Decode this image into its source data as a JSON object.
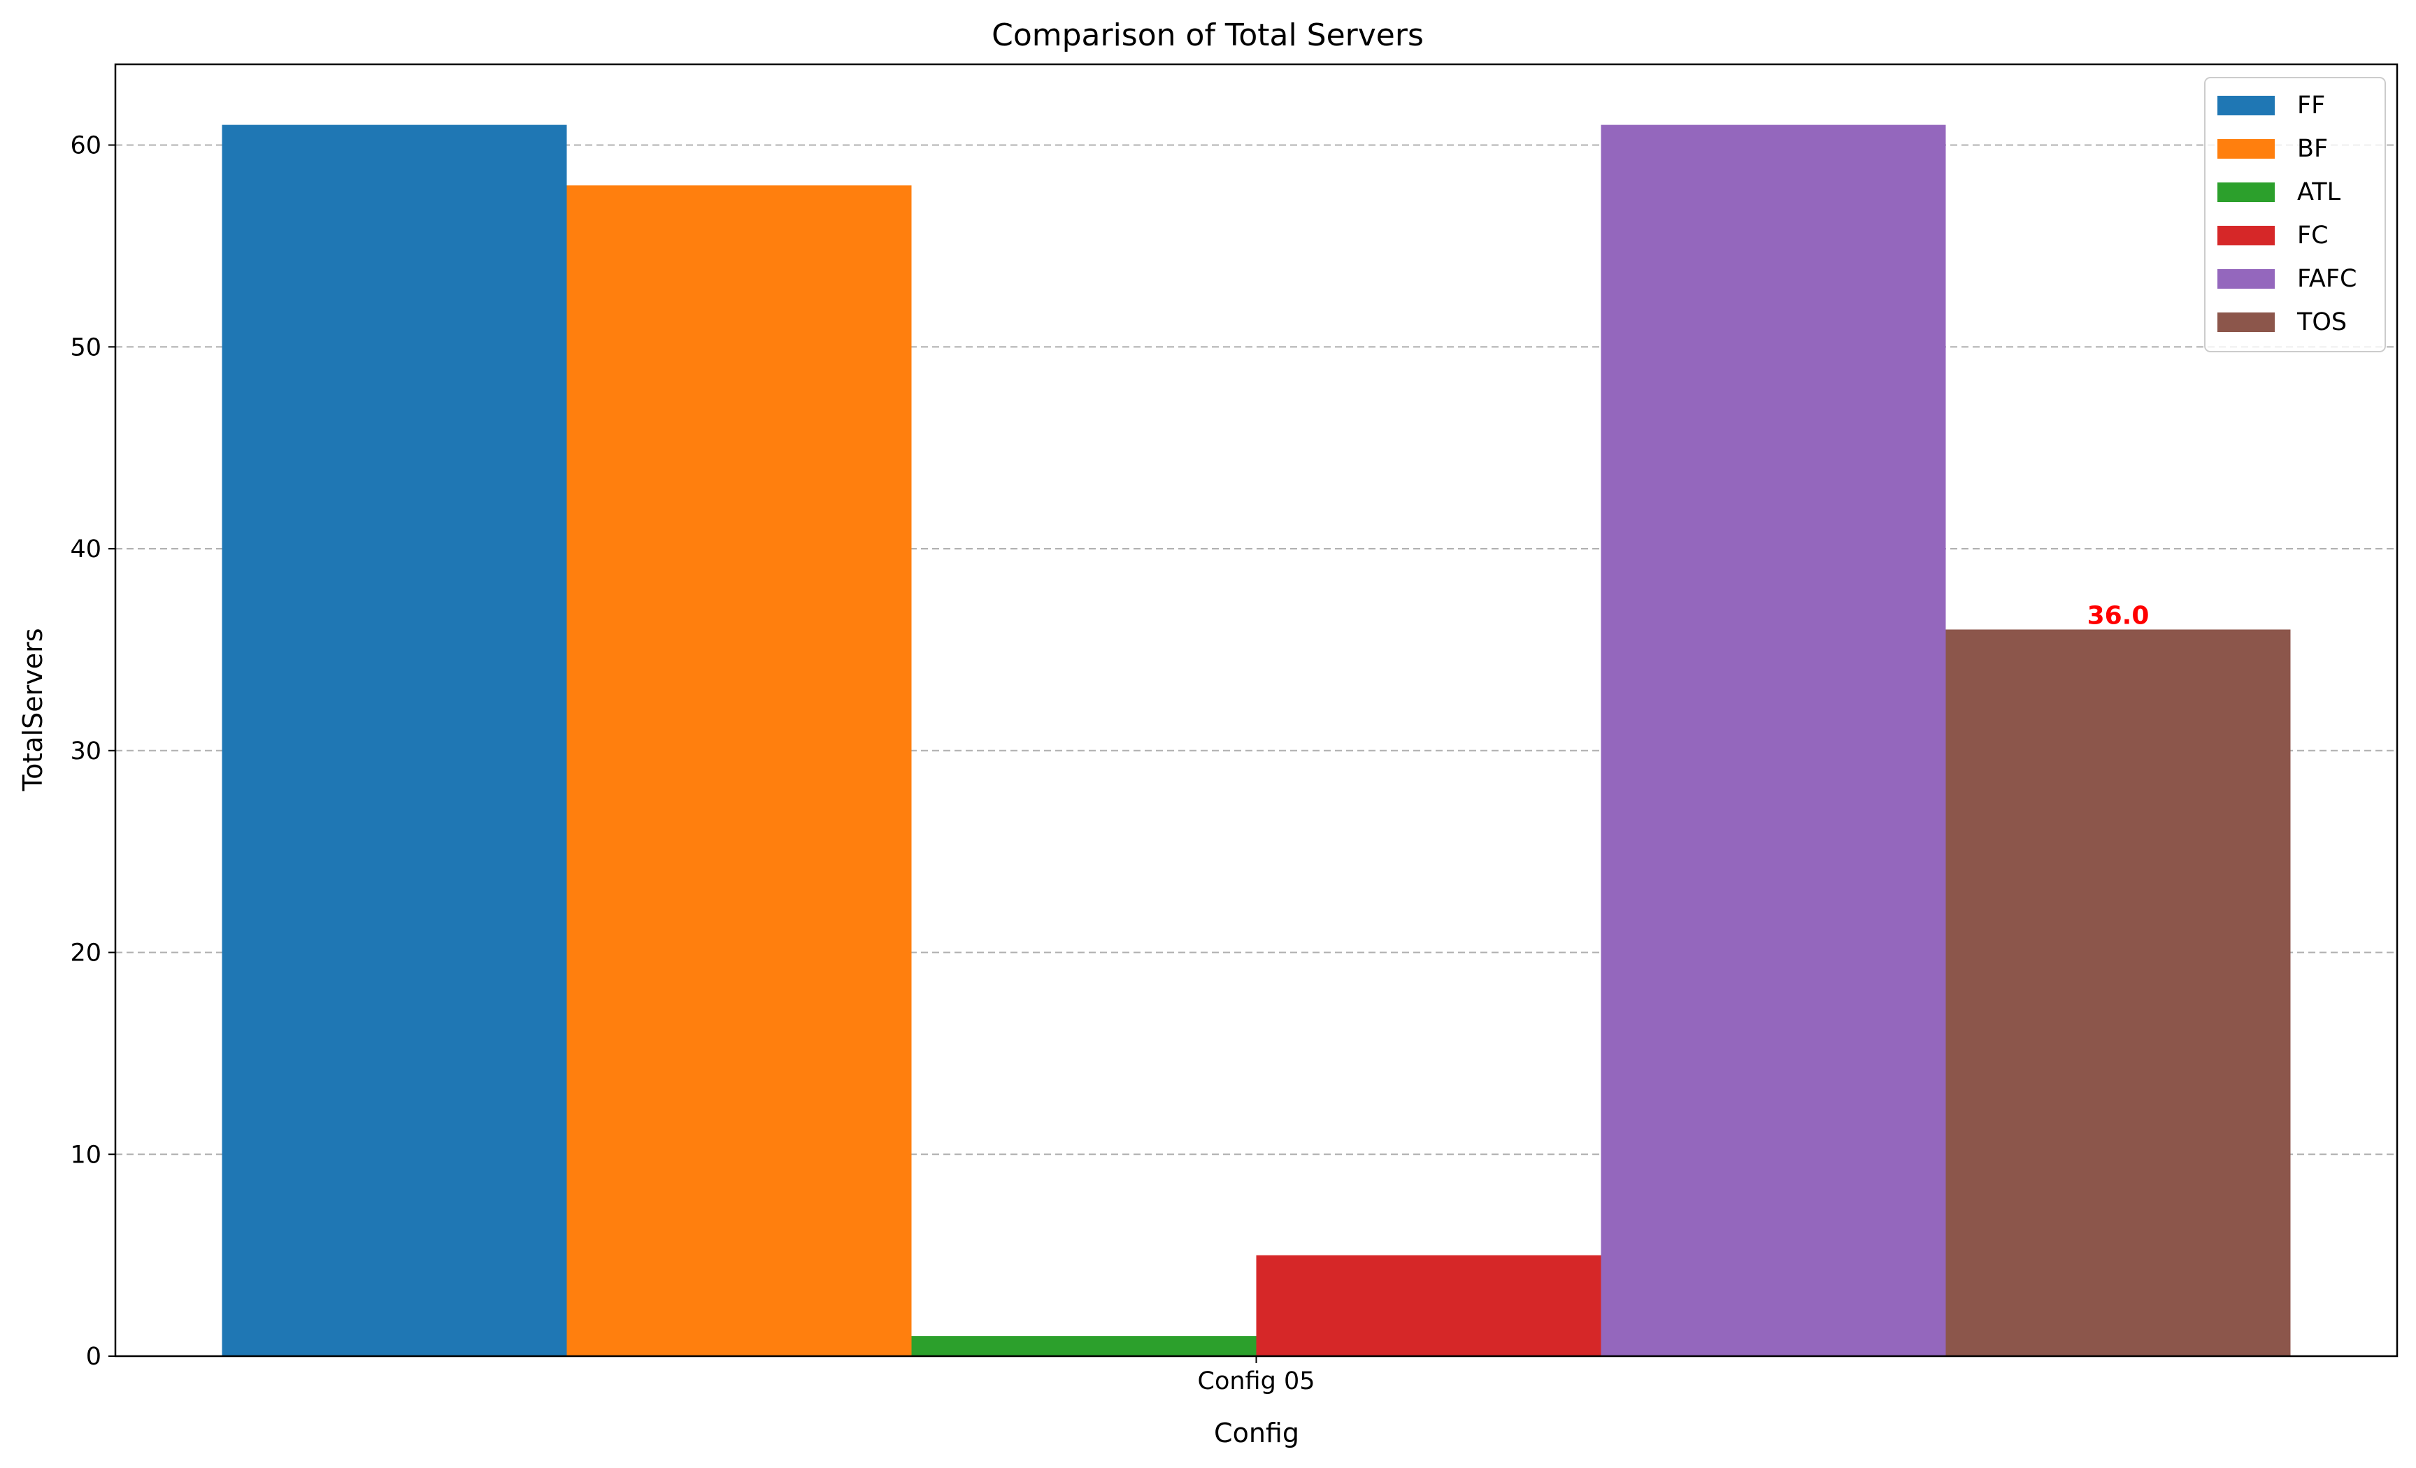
{
  "chart_data": {
    "type": "bar",
    "title": "Comparison of Total Servers",
    "xlabel": "Config",
    "ylabel": "TotalServers",
    "categories": [
      "Config 05"
    ],
    "series": [
      {
        "name": "FF",
        "values": [
          61
        ],
        "color": "#1f77b4"
      },
      {
        "name": "BF",
        "values": [
          58
        ],
        "color": "#ff7f0e"
      },
      {
        "name": "ATL",
        "values": [
          1
        ],
        "color": "#2ca02c"
      },
      {
        "name": "FC",
        "values": [
          5
        ],
        "color": "#d62728"
      },
      {
        "name": "FAFC",
        "values": [
          61
        ],
        "color": "#9467bd"
      },
      {
        "name": "TOS",
        "values": [
          36
        ],
        "color": "#8c564b"
      }
    ],
    "ylim": [
      0,
      64
    ],
    "yticks": [
      0,
      10,
      20,
      30,
      40,
      50,
      60
    ],
    "grid": "y-dashed",
    "legend_position": "top-right",
    "annotations": [
      {
        "series": "TOS",
        "category": "Config 05",
        "text": "36.0",
        "color": "#ff0000"
      }
    ]
  }
}
